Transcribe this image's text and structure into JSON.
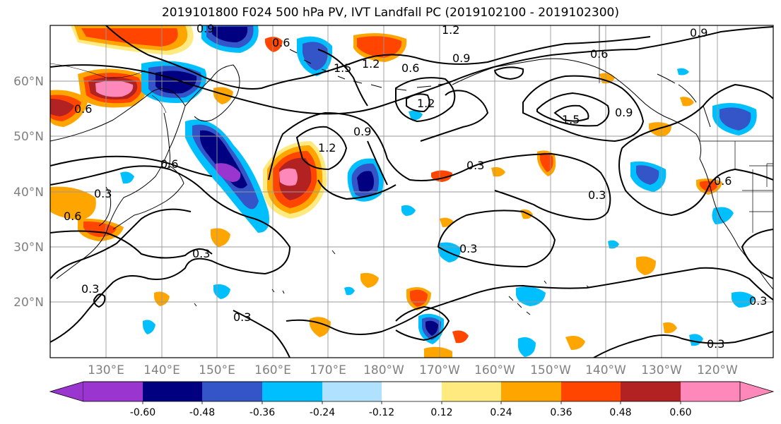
{
  "title": "2019101800 F024 500 hPa PV, IVT Landfall PC (2019102100 - 2019102300)",
  "colors": {
    "frame": "#000000",
    "grid": "#999999",
    "contour": "#000000",
    "coast": "#000000",
    "axis_text": "#808080"
  },
  "map": {
    "lat_labels": [
      "60°N",
      "50°N",
      "40°N",
      "30°N",
      "20°N"
    ],
    "lon_labels": [
      "130°E",
      "140°E",
      "150°E",
      "160°E",
      "170°E",
      "180°W",
      "170°W",
      "160°W",
      "150°W",
      "140°W",
      "130°W",
      "120°W"
    ]
  },
  "contour_labels": [
    "0.9",
    "1.2",
    "0.6",
    "0.9",
    "0.6",
    "1.5",
    "1.2",
    "0.9",
    "1.2",
    "0.6",
    "1.2",
    "1.5",
    "0.9",
    "0.6",
    "0.3",
    "0.9",
    "0.6",
    "0.6",
    "0.3",
    "0.6",
    "0.3",
    "0.3",
    "0.3",
    "0.3",
    "0.3",
    "0.3",
    "0.3"
  ],
  "colorbar": {
    "colors": [
      "#9a35d0",
      "#000080",
      "#3355c8",
      "#00bfff",
      "#b0e2ff",
      "#ffffff",
      "#ffea80",
      "#ffa500",
      "#ff4500",
      "#b22222",
      "#ff88bb"
    ],
    "tick_labels": [
      "-0.60",
      "-0.48",
      "-0.36",
      "-0.24",
      "-0.12",
      "0.12",
      "0.24",
      "0.36",
      "0.48",
      "0.60"
    ]
  }
}
